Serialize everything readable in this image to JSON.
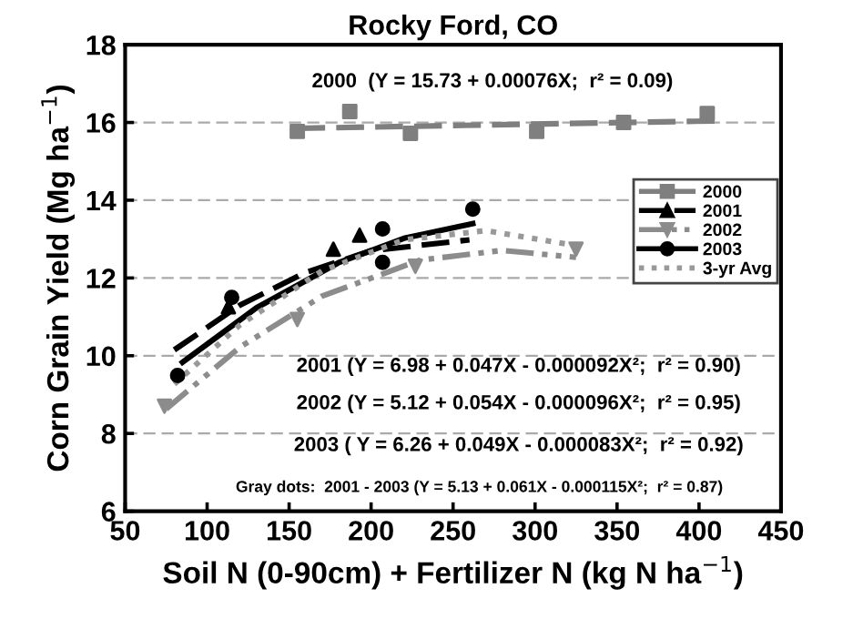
{
  "chart_data": {
    "type": "scatter",
    "title": "Rocky Ford, CO",
    "xlabel": "Soil N (0-90cm) + Fertilizer N (kg N ha$^{−1}$)",
    "ylabel": "Corn Grain Yield (Mg ha$^{−1}$)",
    "xlim": [
      50,
      450
    ],
    "xticks": [
      50,
      100,
      150,
      200,
      250,
      300,
      350,
      400,
      450
    ],
    "ylim": [
      6,
      18
    ],
    "yticks": [
      6,
      8,
      10,
      12,
      14,
      16,
      18
    ],
    "grid": "y",
    "legend": "right",
    "series": [
      {
        "name": "2000",
        "color": "#7f7f7f",
        "marker": "square",
        "line_style": "dashed",
        "x": [
          155,
          187,
          224,
          301,
          354,
          405
        ],
        "values": [
          15.77,
          16.28,
          15.72,
          15.77,
          16.0,
          16.23
        ]
      },
      {
        "type": "line",
        "color": "#7f7f7f",
        "line_style": "dashed",
        "x": [
          155,
          410
        ],
        "values": [
          15.85,
          16.04
        ]
      },
      {
        "name": "2001",
        "color": "#000000",
        "marker": "triangle",
        "line_style": "dashed",
        "x": [
          113,
          177,
          193
        ],
        "values": [
          11.26,
          12.74,
          13.1
        ]
      },
      {
        "type": "line",
        "color": "#000000",
        "line_style": "dashed",
        "x": [
          80,
          120,
          160,
          200,
          260
        ],
        "values": [
          10.15,
          11.3,
          12.14,
          12.7,
          12.98
        ]
      },
      {
        "name": "2002",
        "color": "#8c8c8c",
        "marker": "triangle_down",
        "line_style": "dashdotdot",
        "x": [
          74,
          155,
          227,
          325
        ],
        "values": [
          8.7,
          10.93,
          12.3,
          12.74
        ]
      },
      {
        "type": "line",
        "color": "#8c8c8c",
        "line_style": "dashdotdot",
        "x": [
          75,
          120,
          170,
          230,
          280,
          325
        ],
        "values": [
          8.63,
          10.22,
          11.53,
          12.46,
          12.71,
          12.53
        ]
      },
      {
        "name": "2003",
        "color": "#000000",
        "marker": "circle",
        "line_style": "solid",
        "x": [
          82,
          115,
          207,
          207,
          262
        ],
        "values": [
          9.49,
          11.5,
          13.26,
          12.4,
          13.77
        ]
      },
      {
        "type": "line",
        "color": "#000000",
        "line_style": "solid",
        "x": [
          85,
          130,
          180,
          220,
          262
        ],
        "values": [
          9.83,
          11.23,
          12.39,
          13.02,
          13.4
        ]
      },
      {
        "name": "3-yr Avg",
        "type": "line",
        "color": "#999999",
        "line_style": "dotted",
        "x": [
          80,
          120,
          170,
          220,
          270,
          320
        ],
        "values": [
          9.27,
          10.79,
          12.18,
          12.98,
          13.22,
          12.87
        ]
      }
    ],
    "annotations": [
      "2000  (Y = 15.73 + 0.00076X;  r² = 0.09)",
      "2001 (Y = 6.98 + 0.047X - 0.000092X²;  r² = 0.90)",
      "2002 (Y = 5.12 + 0.054X - 0.000096X²;  r² = 0.95)",
      "2003 ( Y = 6.26 + 0.049X - 0.000083X²;  r² = 0.92)",
      "Gray dots:  2001 - 2003 (Y = 5.13 + 0.061X - 0.000115X²;  r² = 0.87)"
    ]
  }
}
